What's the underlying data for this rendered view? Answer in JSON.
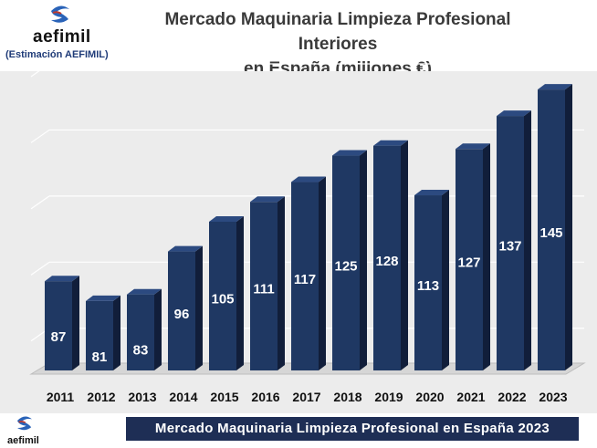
{
  "brand": {
    "name": "aefimil",
    "estimation_note": "(Estimación AEFIMIL)"
  },
  "chart_data": {
    "type": "bar",
    "title": "Mercado Maquinaria Limpieza Profesional Interiores",
    "subtitle": "en España (millones €)",
    "categories": [
      "2011",
      "2012",
      "2013",
      "2014",
      "2015",
      "2016",
      "2017",
      "2018",
      "2019",
      "2020",
      "2021",
      "2022",
      "2023"
    ],
    "values": [
      87,
      81,
      83,
      96,
      105,
      111,
      117,
      125,
      128,
      113,
      127,
      137,
      145
    ],
    "xlabel": "",
    "ylabel": "",
    "ylim": [
      60,
      150
    ],
    "grid": true,
    "legend": "none",
    "colors": {
      "bar": "#1f3863",
      "bar_side": "#111e3a",
      "bar_top": "#2c4a80",
      "plot_bg": "#ececec"
    }
  },
  "footer": {
    "banner": "Mercado Maquinaria Limpieza Profesional en España 2023"
  }
}
